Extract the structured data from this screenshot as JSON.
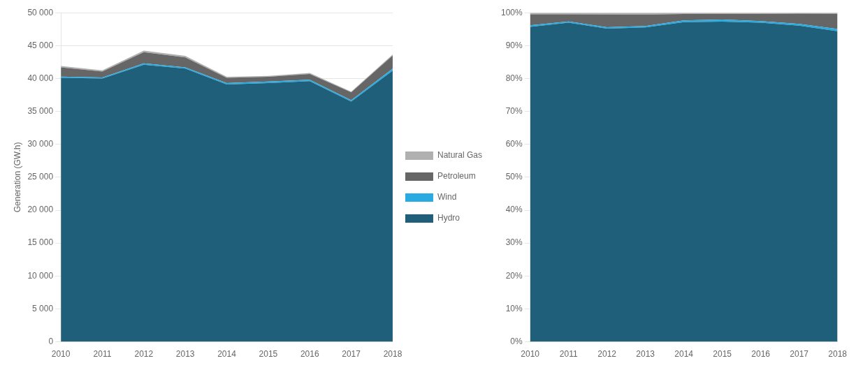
{
  "chart_data": [
    {
      "type": "area",
      "stacked": true,
      "ylabel": "Generation (GW.h)",
      "categories": [
        "2010",
        "2011",
        "2012",
        "2013",
        "2014",
        "2015",
        "2016",
        "2017",
        "2018"
      ],
      "series": [
        {
          "name": "Hydro",
          "color": "#1f5f7a",
          "values": [
            40100,
            40000,
            42100,
            41500,
            39100,
            39300,
            39600,
            36500,
            41200
          ]
        },
        {
          "name": "Wind",
          "color": "#29abe2",
          "values": [
            200,
            150,
            200,
            200,
            200,
            250,
            200,
            200,
            300
          ]
        },
        {
          "name": "Petroleum",
          "color": "#666666",
          "values": [
            1400,
            900,
            1700,
            1500,
            800,
            700,
            900,
            1200,
            2000
          ]
        },
        {
          "name": "Natural Gas",
          "color": "#b0b0b0",
          "values": [
            200,
            200,
            250,
            250,
            150,
            150,
            150,
            100,
            150
          ]
        }
      ],
      "ylim": [
        0,
        50000
      ],
      "yticks": [
        0,
        {
          "value": 5000,
          "label": "5 000"
        },
        {
          "value": 10000,
          "label": "10 000"
        },
        {
          "value": 15000,
          "label": "15 000"
        },
        {
          "value": 20000,
          "label": "20 000"
        },
        {
          "value": 25000,
          "label": "25 000"
        },
        {
          "value": 30000,
          "label": "30 000"
        },
        {
          "value": 35000,
          "label": "35 000"
        },
        {
          "value": 40000,
          "label": "40 000"
        },
        {
          "value": 45000,
          "label": "45 000"
        },
        {
          "value": 50000,
          "label": "50 000"
        }
      ],
      "grid": true,
      "legend": "right"
    },
    {
      "type": "area",
      "stacked": true,
      "categories": [
        "2010",
        "2011",
        "2012",
        "2013",
        "2014",
        "2015",
        "2016",
        "2017",
        "2018"
      ],
      "series": [
        {
          "name": "Hydro",
          "color": "#1f5f7a",
          "values": [
            95.704057,
            96.969697,
            95.141243,
            95.512083,
            97.142857,
            97.277228,
            96.940024,
            96.0526316,
            94.387171
          ]
        },
        {
          "name": "Wind",
          "color": "#29abe2",
          "values": [
            0.477327,
            0.363636,
            0.451977,
            0.460299,
            0.496894,
            0.618812,
            0.489596,
            0.5263158,
            0.687285
          ]
        },
        {
          "name": "Petroleum",
          "color": "#666666",
          "values": [
            3.341289,
            2.181818,
            3.841808,
            3.452244,
            1.987578,
            1.732673,
            2.203182,
            3.1578947,
            4.581901
          ]
        },
        {
          "name": "Natural Gas",
          "color": "#b0b0b0",
          "values": [
            0.477327,
            0.484848,
            0.564972,
            0.575374,
            0.372671,
            0.371287,
            0.367197,
            0.2631579,
            0.343643
          ]
        }
      ],
      "ylim": [
        0,
        100
      ],
      "yticks": [
        {
          "value": 0,
          "label": "0%"
        },
        {
          "value": 10,
          "label": "10%"
        },
        {
          "value": 20,
          "label": "20%"
        },
        {
          "value": 30,
          "label": "30%"
        },
        {
          "value": 40,
          "label": "40%"
        },
        {
          "value": 50,
          "label": "50%"
        },
        {
          "value": 60,
          "label": "60%"
        },
        {
          "value": 70,
          "label": "70%"
        },
        {
          "value": 80,
          "label": "80%"
        },
        {
          "value": 90,
          "label": "90%"
        },
        {
          "value": 100,
          "label": "100%"
        }
      ],
      "grid": true
    }
  ]
}
